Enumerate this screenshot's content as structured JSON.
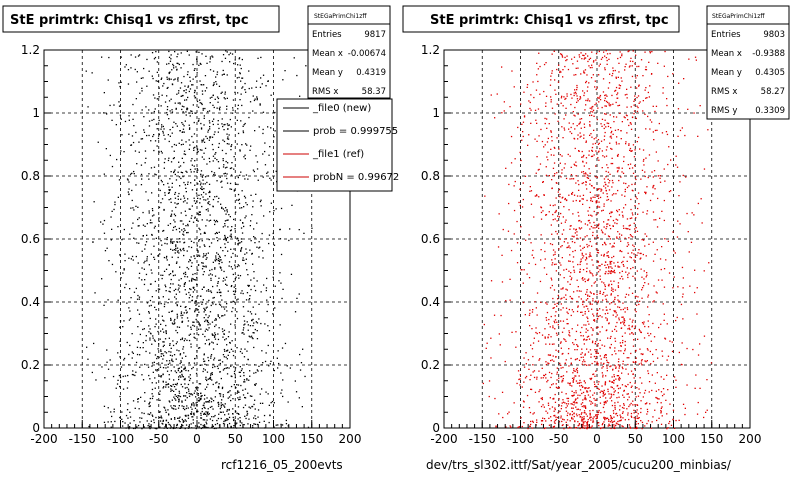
{
  "chart_data": [
    {
      "type": "scatter",
      "title": "StE primtrk: Chisq1 vs zfirst, tpc",
      "xlabel": "rcf1216_05_200evts",
      "ylabel": "",
      "xlim": [
        -200,
        200
      ],
      "ylim": [
        0,
        1.2
      ],
      "x_ticks": [
        "-200",
        "-150",
        "-100",
        "-50",
        "0",
        "50",
        "100",
        "150",
        "200"
      ],
      "y_ticks": [
        "0",
        "0.2",
        "0.4",
        "0.6",
        "0.8",
        "1",
        "1.2"
      ],
      "grid": true,
      "marker_color": "#000000",
      "stats": {
        "name": "StEGaPrimChi1zff",
        "rows": [
          {
            "label": "Entries",
            "value": "9817"
          },
          {
            "label": "Mean x",
            "value": "-0.00674"
          },
          {
            "label": "Mean y",
            "value": "0.4319"
          },
          {
            "label": "RMS x",
            "value": "58.37"
          }
        ]
      },
      "legend": {
        "placement": "top-right",
        "entries": [
          {
            "label": "_file0 (new)",
            "color": "#000000"
          },
          {
            "label": "prob = 0.999755",
            "color": "#000000"
          },
          {
            "label": "_file1 (ref)",
            "color": "#cc0000"
          },
          {
            "label": "probN = 0.99672",
            "color": "#cc0000"
          }
        ]
      },
      "series": [
        {
          "entries": 9817,
          "mean_x": -0.00674,
          "mean_y": 0.4319,
          "rms_x": 58.37,
          "x_range": [
            -200,
            200
          ],
          "y_range": [
            0,
            1.2
          ]
        }
      ]
    },
    {
      "type": "scatter",
      "title": "StE primtrk: Chisq1 vs zfirst, tpc",
      "xlabel": "dev/trs_sl302.ittf/Sat/year_2005/cucu200_minbias/",
      "ylabel": "",
      "xlim": [
        -200,
        200
      ],
      "ylim": [
        0,
        1.2
      ],
      "x_ticks": [
        "-200",
        "-150",
        "-100",
        "-50",
        "0",
        "50",
        "100",
        "150",
        "200"
      ],
      "y_ticks": [
        "0",
        "0.2",
        "0.4",
        "0.6",
        "0.8",
        "1",
        "1.2"
      ],
      "grid": true,
      "marker_color": "#e00000",
      "stats": {
        "name": "StEGaPrimChi1zff",
        "rows": [
          {
            "label": "Entries",
            "value": "9803"
          },
          {
            "label": "Mean x",
            "value": "-0.9388"
          },
          {
            "label": "Mean y",
            "value": "0.4305"
          },
          {
            "label": "RMS x",
            "value": "58.27"
          },
          {
            "label": "RMS y",
            "value": "0.3309"
          }
        ]
      },
      "series": [
        {
          "entries": 9803,
          "mean_x": -0.9388,
          "mean_y": 0.4305,
          "rms_x": 58.27,
          "rms_y": 0.3309,
          "x_range": [
            -200,
            200
          ],
          "y_range": [
            0,
            1.2
          ]
        }
      ]
    }
  ]
}
